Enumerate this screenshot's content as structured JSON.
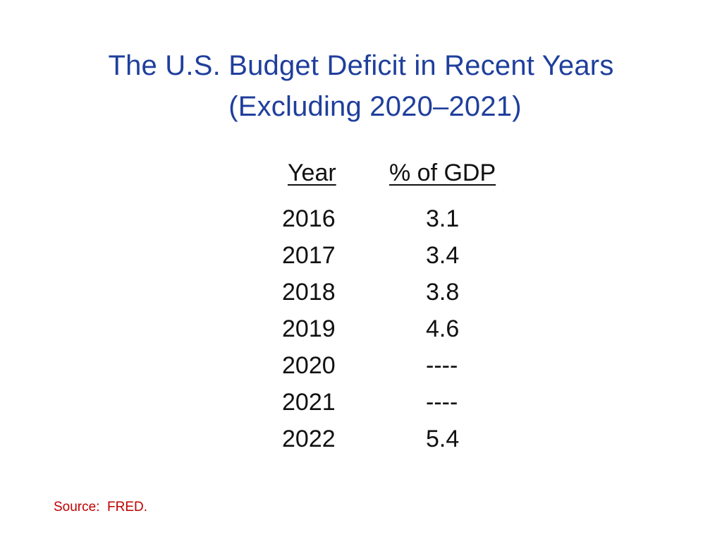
{
  "slide": {
    "title_line1": "The U.S. Budget Deficit in Recent Years",
    "title_line2": "(Excluding 2020–2021)",
    "table": {
      "headers": {
        "year": "Year",
        "pct": "% of GDP"
      },
      "rows": [
        {
          "year": "2016",
          "value": "3.1"
        },
        {
          "year": "2017",
          "value": "3.4"
        },
        {
          "year": "2018",
          "value": "3.8"
        },
        {
          "year": "2019",
          "value": "4.6"
        },
        {
          "year": "2020",
          "value": "----"
        },
        {
          "year": "2021",
          "value": "----"
        },
        {
          "year": "2022",
          "value": "5.4"
        }
      ]
    },
    "source": "Source:  FRED."
  },
  "colors": {
    "title": "#1f3f9c",
    "body_text": "#111111",
    "source": "#c00000",
    "background": "#ffffff"
  }
}
